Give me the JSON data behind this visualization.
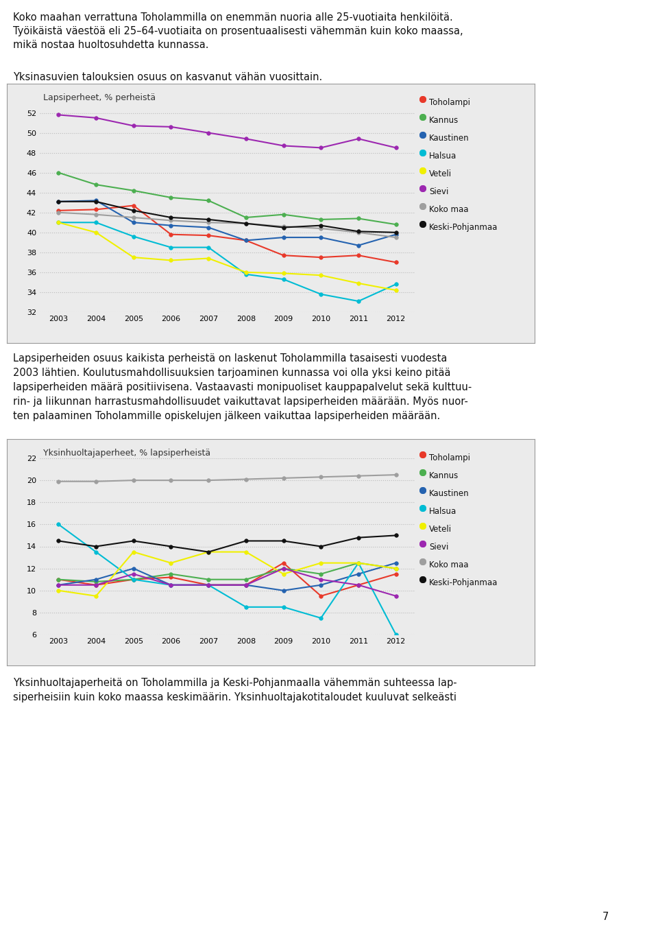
{
  "years": [
    2003,
    2004,
    2005,
    2006,
    2007,
    2008,
    2009,
    2010,
    2011,
    2012
  ],
  "chart1_title": "Lapsiperheet, % perheistä",
  "chart1_series": {
    "Toholampi": [
      42.2,
      42.3,
      42.7,
      39.8,
      39.7,
      39.2,
      37.7,
      37.5,
      37.7,
      37.0
    ],
    "Kannus": [
      46.0,
      44.8,
      44.2,
      43.5,
      43.2,
      41.5,
      41.8,
      41.3,
      41.4,
      40.8
    ],
    "Kaustinen": [
      43.1,
      43.2,
      41.0,
      40.7,
      40.5,
      39.2,
      39.5,
      39.5,
      38.7,
      39.8
    ],
    "Halsua": [
      41.0,
      41.0,
      39.6,
      38.5,
      38.5,
      35.8,
      35.3,
      33.8,
      33.1,
      34.8
    ],
    "Veteli": [
      41.0,
      40.0,
      37.5,
      37.2,
      37.4,
      36.0,
      35.9,
      35.7,
      34.9,
      34.2
    ],
    "Sievi": [
      51.8,
      51.5,
      50.7,
      50.6,
      50.0,
      49.4,
      48.7,
      48.5,
      49.4,
      48.5
    ],
    "Koko maa": [
      42.0,
      41.8,
      41.5,
      41.2,
      41.0,
      40.9,
      40.6,
      40.4,
      40.0,
      39.5
    ],
    "Keski-Pohjanmaa": [
      43.1,
      43.1,
      42.2,
      41.5,
      41.3,
      40.9,
      40.5,
      40.7,
      40.1,
      40.0
    ]
  },
  "chart1_colors": {
    "Toholampi": "#e8392a",
    "Kannus": "#4caf50",
    "Kaustinen": "#2563b0",
    "Halsua": "#00bcd4",
    "Veteli": "#f0f000",
    "Sievi": "#9c27b0",
    "Koko maa": "#9e9e9e",
    "Keski-Pohjanmaa": "#111111"
  },
  "chart1_ylim": [
    32,
    53
  ],
  "chart1_yticks": [
    32,
    34,
    36,
    38,
    40,
    42,
    44,
    46,
    48,
    50,
    52
  ],
  "chart2_title": "Yksinhuoltajaperheet, % lapsiperheistä",
  "chart2_series": {
    "Toholampi": [
      11.0,
      10.5,
      11.0,
      11.2,
      10.5,
      10.5,
      12.5,
      9.5,
      10.5,
      11.5
    ],
    "Kannus": [
      11.0,
      10.8,
      11.0,
      11.5,
      11.0,
      11.0,
      12.0,
      11.5,
      12.5,
      12.0
    ],
    "Kaustinen": [
      10.5,
      11.0,
      12.0,
      10.5,
      10.5,
      10.5,
      10.0,
      10.5,
      11.5,
      12.5
    ],
    "Halsua": [
      16.0,
      13.5,
      11.0,
      10.5,
      10.5,
      8.5,
      8.5,
      7.5,
      12.5,
      6.0
    ],
    "Veteli": [
      10.0,
      9.5,
      13.5,
      12.5,
      13.5,
      13.5,
      11.5,
      12.5,
      12.5,
      12.0
    ],
    "Sievi": [
      10.5,
      10.5,
      11.5,
      10.5,
      10.5,
      10.5,
      12.0,
      11.0,
      10.5,
      9.5
    ],
    "Koko maa": [
      19.9,
      19.9,
      20.0,
      20.0,
      20.0,
      20.1,
      20.2,
      20.3,
      20.4,
      20.5
    ],
    "Keski-Pohjanmaa": [
      14.5,
      14.0,
      14.5,
      14.0,
      13.5,
      14.5,
      14.5,
      14.0,
      14.8,
      15.0
    ]
  },
  "chart2_colors": {
    "Toholampi": "#e8392a",
    "Kannus": "#4caf50",
    "Kaustinen": "#2563b0",
    "Halsua": "#00bcd4",
    "Veteli": "#f0f000",
    "Sievi": "#9c27b0",
    "Koko maa": "#9e9e9e",
    "Keski-Pohjanmaa": "#111111"
  },
  "chart2_ylim": [
    6,
    22
  ],
  "chart2_yticks": [
    6,
    8,
    10,
    12,
    14,
    16,
    18,
    20,
    22
  ],
  "text1_lines": [
    "Koko maahan verrattuna Toholammilla on enemmän nuoria alle 25-vuotiaita henkilöitä.",
    "Työikäistä väestöä eli 25–64-vuotiaita on prosentuaalisesti vähemmän kuin koko maassa,",
    "mikä nostaa huoltosuhdetta kunnassa."
  ],
  "text2": "Yksinasuvien talouksien osuus on kasvanut vähän vuosittain.",
  "text3_lines": [
    "Lapsiperheiden osuus kaikista perheistä on laskenut Toholammilla tasaisesti vuodesta",
    "2003 lähtien. Koulutusmahdollisuuksien tarjoaminen kunnassa voi olla yksi keino pitää",
    "lapsiperheiden määrä positiivisena. Vastaavasti monipuoliset kauppapalvelut sekä kulttuu-",
    "rin- ja liikunnan harrastusmahdollisuudet vaikuttavat lapsiperheiden määrään. Myös nuor-",
    "ten palaaminen Toholammille opiskelujen jälkeen vaikuttaa lapsiperheiden määrään."
  ],
  "text4_lines": [
    "Yksinhuoltajaperheitä on Toholammilla ja Keski-Pohjanmaalla vähemmän suhteessa lap-",
    "siperheisiin kuin koko maassa keskimäärin. Yksinhuoltajakotitaloudet kuuluvat selkeästi"
  ],
  "page_number": "7",
  "chart_bg": "#ebebeb"
}
